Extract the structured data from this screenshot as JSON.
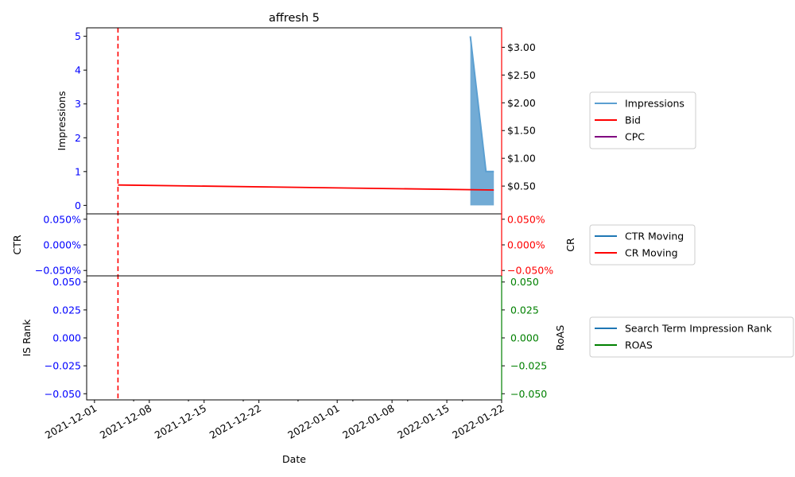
{
  "chart_data": [
    {
      "panel": "top",
      "type": "area",
      "title": "affresh 5",
      "ylabel_left": "Impressions",
      "ylabel_right": "",
      "ylim_left": [
        -0.25,
        5.25
      ],
      "ylim_right": [
        0.0,
        3.35
      ],
      "yticks_left": [
        "0",
        "1",
        "2",
        "3",
        "4",
        "5"
      ],
      "yticks_left_values": [
        0,
        1,
        2,
        3,
        4,
        5
      ],
      "yticks_right": [
        "$0.50",
        "$1.00",
        "$1.50",
        "$2.00",
        "$2.50",
        "$3.00"
      ],
      "yticks_right_values": [
        0.5,
        1.0,
        1.5,
        2.0,
        2.5,
        3.0
      ],
      "series": [
        {
          "name": "Impressions",
          "axis": "left",
          "kind": "area",
          "x": [
            "2022-01-18",
            "2022-01-19",
            "2022-01-20",
            "2022-01-21"
          ],
          "values": [
            5,
            3,
            1,
            1
          ]
        },
        {
          "name": "Bid",
          "axis": "right",
          "kind": "line",
          "x": [
            "2021-12-04",
            "2022-01-21"
          ],
          "values": [
            0.52,
            0.43
          ]
        },
        {
          "name": "CPC",
          "axis": "right",
          "kind": "line",
          "x": [],
          "values": []
        }
      ],
      "vline": "2021-12-04",
      "legend": [
        "Impressions",
        "Bid",
        "CPC"
      ],
      "legend_placement": "outside-right"
    },
    {
      "panel": "middle",
      "type": "line",
      "ylabel_left": "CTR",
      "ylabel_right": "CR",
      "yticks_left": [
        "0.050%",
        "0.000%",
        "−0.050%"
      ],
      "yticks_right": [
        "0.050%",
        "0.000%",
        "−0.050%"
      ],
      "yticks_values": [
        0.05,
        0.0,
        -0.05
      ],
      "series": [
        {
          "name": "CTR Moving",
          "axis": "left",
          "x": [],
          "values": []
        },
        {
          "name": "CR Moving",
          "axis": "right",
          "x": [],
          "values": []
        }
      ],
      "vline": "2021-12-04",
      "legend": [
        "CTR Moving",
        "CR Moving"
      ],
      "legend_placement": "outside-right"
    },
    {
      "panel": "bottom",
      "type": "line",
      "ylabel_left": "IS Rank",
      "ylabel_right": "RoAS",
      "xlabel": "Date",
      "yticks_left": [
        "0.050",
        "0.025",
        "0.000",
        "−0.025",
        "−0.050"
      ],
      "yticks_right": [
        "0.050",
        "0.025",
        "0.000",
        "−0.025",
        "−0.050"
      ],
      "yticks_values": [
        0.05,
        0.025,
        0.0,
        -0.025,
        -0.05
      ],
      "xticks": [
        "2021-12-01",
        "2021-12-08",
        "2021-12-15",
        "2021-12-22",
        "2022-01-01",
        "2022-01-08",
        "2022-01-15",
        "2022-01-22"
      ],
      "xlim": [
        "2021-11-30",
        "2022-01-22"
      ],
      "series": [
        {
          "name": "Search Term Impression Rank",
          "axis": "left",
          "x": [],
          "values": []
        },
        {
          "name": "ROAS",
          "axis": "right",
          "x": [],
          "values": []
        }
      ],
      "vline": "2021-12-04",
      "legend": [
        "Search Term Impression Rank",
        "ROAS"
      ],
      "legend_placement": "outside-right"
    }
  ],
  "colors": {
    "impressions_line": "#5b9fd1",
    "impressions_fill": "#6aa6d3",
    "bid": "#ff0000",
    "cpc": "#800080",
    "ctr_moving": "#1f77b4",
    "cr_moving": "#ff0000",
    "is_rank": "#1f77b4",
    "roas": "#008000",
    "left_ticks": "#0000ff",
    "right_ticks_top": "#ff0000",
    "right_ticks_bottom": "#008000",
    "vline": "#ff0000"
  }
}
